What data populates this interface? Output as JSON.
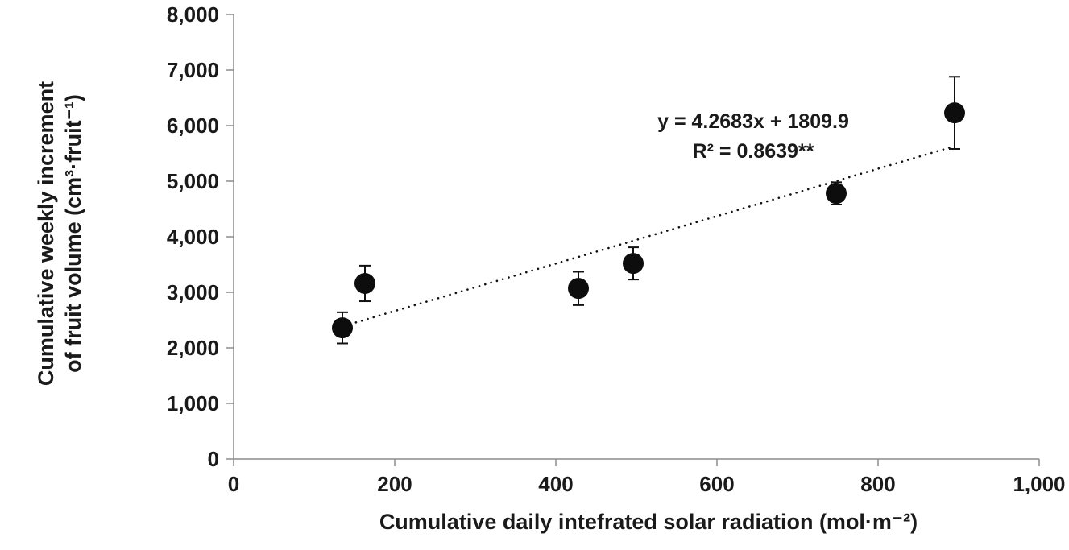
{
  "chart_data": {
    "type": "scatter",
    "title": "",
    "xlabel": "Cumulative daily intefrated solar radiation (mol·m⁻²)",
    "ylabel": "Cumulative weekly increment of fruit volume (cm³·fruit⁻¹)",
    "ylabel_lines": [
      "Cumulative weekly increment",
      "of fruit volume (cm³·fruit⁻¹)"
    ],
    "xlim": [
      0,
      1000
    ],
    "ylim": [
      0,
      8000
    ],
    "x_ticks": [
      0,
      200,
      400,
      600,
      800,
      1000
    ],
    "x_tick_labels": [
      "0",
      "200",
      "400",
      "600",
      "800",
      "1,000"
    ],
    "y_ticks": [
      0,
      1000,
      2000,
      3000,
      4000,
      5000,
      6000,
      7000,
      8000
    ],
    "y_tick_labels": [
      "0",
      "1,000",
      "2,000",
      "3,000",
      "4,000",
      "5,000",
      "6,000",
      "7,000",
      "8,000"
    ],
    "grid": false,
    "legend": false,
    "points": [
      {
        "x": 135,
        "y": 2360,
        "err": 280
      },
      {
        "x": 163,
        "y": 3160,
        "err": 320
      },
      {
        "x": 428,
        "y": 3070,
        "err": 300
      },
      {
        "x": 496,
        "y": 3520,
        "err": 290
      },
      {
        "x": 748,
        "y": 4780,
        "err": 200
      },
      {
        "x": 895,
        "y": 6230,
        "err": 650
      }
    ],
    "trendline": {
      "equation": "y = 4.2683x + 1809.9",
      "slope": 4.2683,
      "intercept": 1809.9,
      "x_start": 130,
      "x_end": 890,
      "style": "dotted"
    },
    "annotation": {
      "line1": "y = 4.2683x + 1809.9",
      "line2": "R² = 0.8639**"
    },
    "marker": {
      "shape": "circle",
      "color": "#0d0d0d",
      "radius_px": 13
    },
    "axis_color": "#8c8c8c",
    "text_color": "#1a1a1a"
  }
}
